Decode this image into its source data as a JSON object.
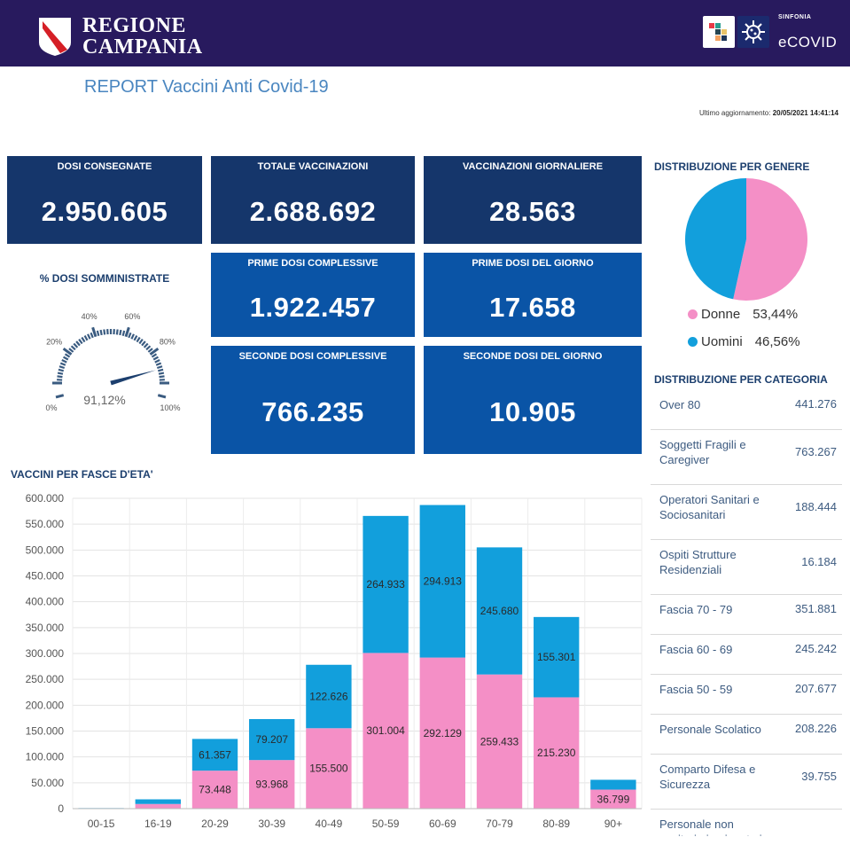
{
  "header": {
    "brand_line1": "REGIONE",
    "brand_line2": "CAMPANIA",
    "partner_small": "SINFONIA",
    "partner_name": "eCOVID"
  },
  "report_title": "REPORT Vaccini Anti Covid-19",
  "updated": {
    "label": "Ultimo aggiornamento:",
    "value": "20/05/2021 14:41:14"
  },
  "kpis": {
    "dosi_consegnate": {
      "label": "DOSI CONSEGNATE",
      "value": "2.950.605"
    },
    "totale_vaccinazioni": {
      "label": "TOTALE VACCINAZIONI",
      "value": "2.688.692"
    },
    "vaccinazioni_giornaliere": {
      "label": "VACCINAZIONI GIORNALIERE",
      "value": "28.563"
    },
    "prime_dosi_complessive": {
      "label": "PRIME DOSI COMPLESSIVE",
      "value": "1.922.457"
    },
    "prime_dosi_giorno": {
      "label": "PRIME DOSI DEL GIORNO",
      "value": "17.658"
    },
    "seconde_dosi_complessive": {
      "label": "SECONDE DOSI COMPLESSIVE",
      "value": "766.235"
    },
    "seconde_dosi_giorno": {
      "label": "SECONDE DOSI DEL GIORNO",
      "value": "10.905"
    }
  },
  "gauge": {
    "title": "% DOSI SOMMINISTRATE",
    "value_label": "91,12%",
    "value": 91.12,
    "ticks": [
      "0%",
      "20%",
      "40%",
      "60%",
      "80%",
      "100%"
    ]
  },
  "gender": {
    "title": "DISTRIBUZIONE PER GENERE",
    "items": [
      {
        "label": "Donne",
        "value": "53,44%",
        "share": 53.44,
        "color": "#f48fc6"
      },
      {
        "label": "Uomini",
        "value": "46,56%",
        "share": 46.56,
        "color": "#129fdc"
      }
    ]
  },
  "category": {
    "title": "DISTRIBUZIONE PER CATEGORIA",
    "rows": [
      {
        "name": "Over 80",
        "value": "441.276"
      },
      {
        "name": "Soggetti Fragili e Caregiver",
        "value": "763.267"
      },
      {
        "name": "Operatori Sanitari e Sociosanitari",
        "value": "188.444"
      },
      {
        "name": "Ospiti Strutture Residenziali",
        "value": "16.184"
      },
      {
        "name": "Fascia 70 - 79",
        "value": "351.881"
      },
      {
        "name": "Fascia 60 - 69",
        "value": "245.242"
      },
      {
        "name": "Fascia 50 - 59",
        "value": "207.677"
      },
      {
        "name": "Personale Scolatico",
        "value": "208.226"
      },
      {
        "name": "Comparto Difesa e Sicurezza",
        "value": "39.755"
      },
      {
        "name": "Personale non sanitario impiegato in",
        "value": ""
      }
    ]
  },
  "chart_data": {
    "type": "bar",
    "title": "VACCINI PER FASCE D'ETA'",
    "stacked": true,
    "categories": [
      "00-15",
      "16-19",
      "20-29",
      "30-39",
      "40-49",
      "50-59",
      "60-69",
      "70-79",
      "80-89",
      "90+"
    ],
    "ylim": [
      0,
      600000
    ],
    "yticks": [
      "0",
      "50.000",
      "100.000",
      "150.000",
      "200.000",
      "250.000",
      "300.000",
      "350.000",
      "400.000",
      "450.000",
      "500.000",
      "550.000",
      "600.000"
    ],
    "grid": true,
    "series": [
      {
        "color": "#f48fc6",
        "values": [
          600,
          9000,
          73448,
          93968,
          155500,
          301004,
          292129,
          259433,
          215230,
          36799
        ],
        "labels": [
          "",
          "",
          "73.448",
          "93.968",
          "155.500",
          "301.004",
          "292.129",
          "259.433",
          "215.230",
          "36.799"
        ]
      },
      {
        "color": "#129fdc",
        "values": [
          500,
          9000,
          61357,
          79207,
          122626,
          264933,
          294913,
          245680,
          155301,
          19000
        ],
        "labels": [
          "",
          "",
          "61.357",
          "79.207",
          "122.626",
          "264.933",
          "294.913",
          "245.680",
          "155.301",
          ""
        ]
      }
    ]
  }
}
